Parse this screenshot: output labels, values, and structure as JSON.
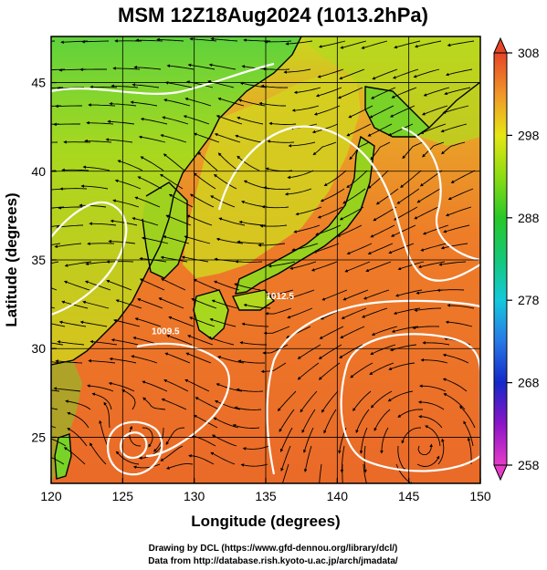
{
  "title": "MSM 12Z18Aug2024 (1013.2hPa)",
  "credits": {
    "line1": "Drawing by DCL (https://www.gfd-dennou.org/library/dcl/)",
    "line2": "Data from http://database.rish.kyoto-u.ac.jp/arch/jmadata/"
  },
  "map": {
    "type": "heatmap",
    "xlabel": "Longitude (degrees)",
    "ylabel": "Latitude  (degrees)",
    "xlim": [
      120,
      150
    ],
    "ylim": [
      22.4,
      47.6
    ],
    "x_ticks": [
      120,
      125,
      130,
      135,
      140,
      145,
      150
    ],
    "x_tick_labels": [
      "120",
      "125",
      "130",
      "135",
      "140",
      "145",
      "150"
    ],
    "y_ticks": [
      25,
      30,
      35,
      40,
      45
    ],
    "y_tick_labels": [
      "25",
      "30",
      "35",
      "40",
      "45"
    ],
    "grid": true,
    "contour_labels": [
      {
        "text": "1009.5",
        "lon": 128.0,
        "lat": 30.8
      },
      {
        "text": "1012.5",
        "lon": 136.0,
        "lat": 32.8
      }
    ]
  },
  "colorbar": {
    "min": 258,
    "max": 308,
    "ticks": [
      308,
      298,
      288,
      278,
      268,
      258
    ],
    "tick_labels": [
      "308",
      "298",
      "288",
      "278",
      "268",
      "258"
    ],
    "stops": [
      {
        "v": 258,
        "color": "#e63cc8"
      },
      {
        "v": 263,
        "color": "#8c14c8"
      },
      {
        "v": 268,
        "color": "#1428c8"
      },
      {
        "v": 273,
        "color": "#2878e6"
      },
      {
        "v": 278,
        "color": "#14c8dc"
      },
      {
        "v": 283,
        "color": "#14c878"
      },
      {
        "v": 288,
        "color": "#28c828"
      },
      {
        "v": 293,
        "color": "#8cdc14"
      },
      {
        "v": 298,
        "color": "#e6e614"
      },
      {
        "v": 303,
        "color": "#f09628"
      },
      {
        "v": 308,
        "color": "#e64628"
      }
    ]
  },
  "colors": {
    "ocean_warm": "#ee7228",
    "land_cool": "#8cdc1e",
    "land_mid": "#c8dc1e",
    "coastline": "#000000",
    "streamline": "#000000",
    "isobar": "#ffffff"
  }
}
